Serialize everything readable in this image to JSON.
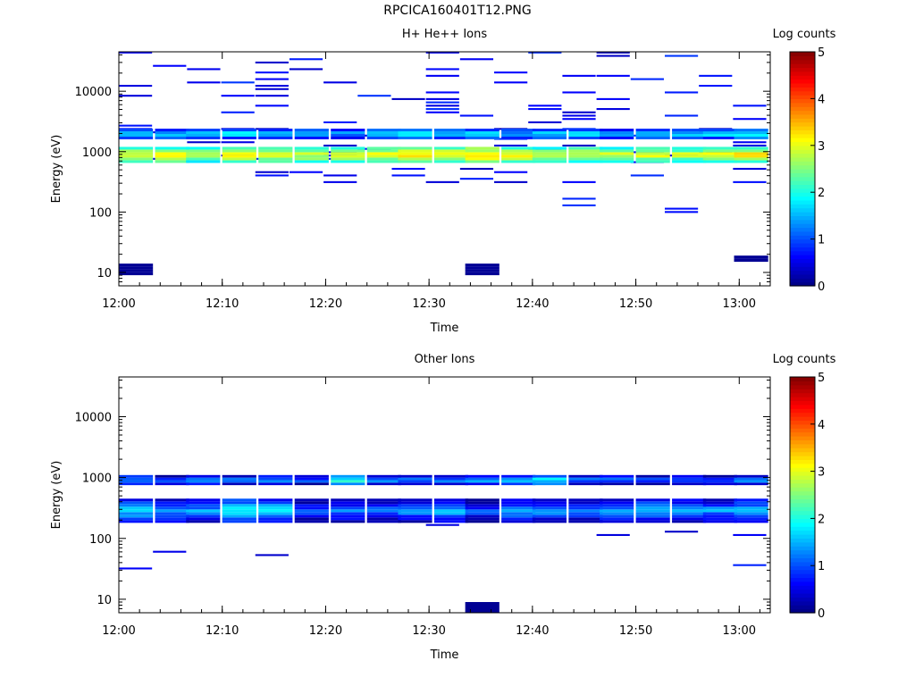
{
  "page_title": "RPCICA160401T12.PNG",
  "chart_data": [
    {
      "type": "heatmap",
      "title": "H+ He++ Ions",
      "xlabel": "Time",
      "ylabel": "Energy (eV)",
      "colorbar_label": "Log counts",
      "y_scale": "log",
      "ylim": [
        6,
        45000
      ],
      "xlim": [
        "12:00",
        "13:03"
      ],
      "x_ticks": [
        "12:00",
        "12:10",
        "12:20",
        "12:30",
        "12:40",
        "12:50",
        "13:00"
      ],
      "y_ticks": [
        "10",
        "100",
        "1000",
        "10000"
      ],
      "colorbar_ticks": [
        "0",
        "1",
        "2",
        "3",
        "4",
        "5"
      ],
      "clim": [
        0,
        5
      ],
      "colormap": "jet",
      "time_columns_start_min": [
        0,
        4.2,
        7.5,
        10.8,
        14,
        17.2,
        20.5,
        23.8,
        27,
        30.2,
        33.5,
        36.8,
        40,
        43.2,
        46.5,
        49.8,
        53,
        56.2,
        59.5
      ],
      "cells": [
        {
          "t": [
            0,
            3.5,
            6.5,
            10,
            13.5,
            17,
            20.5,
            24,
            27,
            30.5,
            33.5,
            37,
            40,
            43.5,
            46.5,
            50,
            53.5,
            56.5,
            59.5
          ],
          "e_low": 650,
          "e_high": 1200,
          "values": [
            3.1,
            3.2,
            3.0,
            3.3,
            3.1,
            3.0,
            3.2,
            3.1,
            3.4,
            3.3,
            3.5,
            3.2,
            3.0,
            3.1,
            3.0,
            3.1,
            3.0,
            3.1,
            3.3
          ]
        },
        {
          "t": [
            0,
            3.5,
            6.5,
            10,
            13.5,
            17,
            20.5,
            24,
            27,
            30.5,
            33.5,
            37,
            40,
            43.5,
            46.5,
            50,
            53.5,
            56.5,
            59.5
          ],
          "e_low": 1600,
          "e_high": 2400,
          "values": [
            2.0,
            1.8,
            1.7,
            1.9,
            1.6,
            1.8,
            1.5,
            1.9,
            2.0,
            1.9,
            1.8,
            1.7,
            1.9,
            1.8,
            1.7,
            1.9,
            1.8,
            1.9,
            2.0
          ]
        },
        {
          "t": [
            0,
            33.5
          ],
          "e_low": 9,
          "e_high": 14,
          "values": [
            0.2,
            0.2
          ]
        },
        {
          "t": [
            59.5
          ],
          "e_low": 15,
          "e_high": 19,
          "values": [
            0.3
          ]
        }
      ]
    },
    {
      "type": "heatmap",
      "title": "Other Ions",
      "xlabel": "Time",
      "ylabel": "Energy (eV)",
      "colorbar_label": "Log counts",
      "y_scale": "log",
      "ylim": [
        6,
        45000
      ],
      "xlim": [
        "12:00",
        "13:03"
      ],
      "x_ticks": [
        "12:00",
        "12:10",
        "12:20",
        "12:30",
        "12:40",
        "12:50",
        "13:00"
      ],
      "y_ticks": [
        "10",
        "100",
        "1000",
        "10000"
      ],
      "colorbar_ticks": [
        "0",
        "1",
        "2",
        "3",
        "4",
        "5"
      ],
      "clim": [
        0,
        5
      ],
      "colormap": "jet",
      "cells": [
        {
          "t": [
            0,
            3.5,
            6.5,
            10,
            13.5,
            17,
            20.5,
            24,
            27,
            30.5,
            33.5,
            37,
            40,
            43.5,
            46.5,
            50,
            53.5,
            56.5,
            59.5
          ],
          "e_low": 750,
          "e_high": 1100,
          "values": [
            1.6,
            1.2,
            1.4,
            1.3,
            1.5,
            1.2,
            2.2,
            1.5,
            1.3,
            1.4,
            1.6,
            1.8,
            2.0,
            1.4,
            1.3,
            1.2,
            1.3,
            1.2,
            1.4
          ]
        },
        {
          "t": [
            0,
            3.5,
            6.5,
            10,
            13.5,
            17,
            20.5,
            24,
            27,
            30.5,
            33.5,
            37,
            40,
            43.5,
            46.5,
            50,
            53.5,
            56.5,
            59.5
          ],
          "e_low": 180,
          "e_high": 450,
          "values": [
            1.7,
            1.5,
            1.4,
            1.9,
            1.8,
            1.1,
            1.3,
            1.2,
            1.4,
            1.6,
            1.1,
            1.5,
            1.4,
            1.2,
            1.4,
            1.6,
            1.5,
            1.4,
            1.6
          ]
        },
        {
          "t": [
            33.5
          ],
          "e_low": 6,
          "e_high": 9,
          "values": [
            0.1
          ]
        }
      ]
    }
  ]
}
